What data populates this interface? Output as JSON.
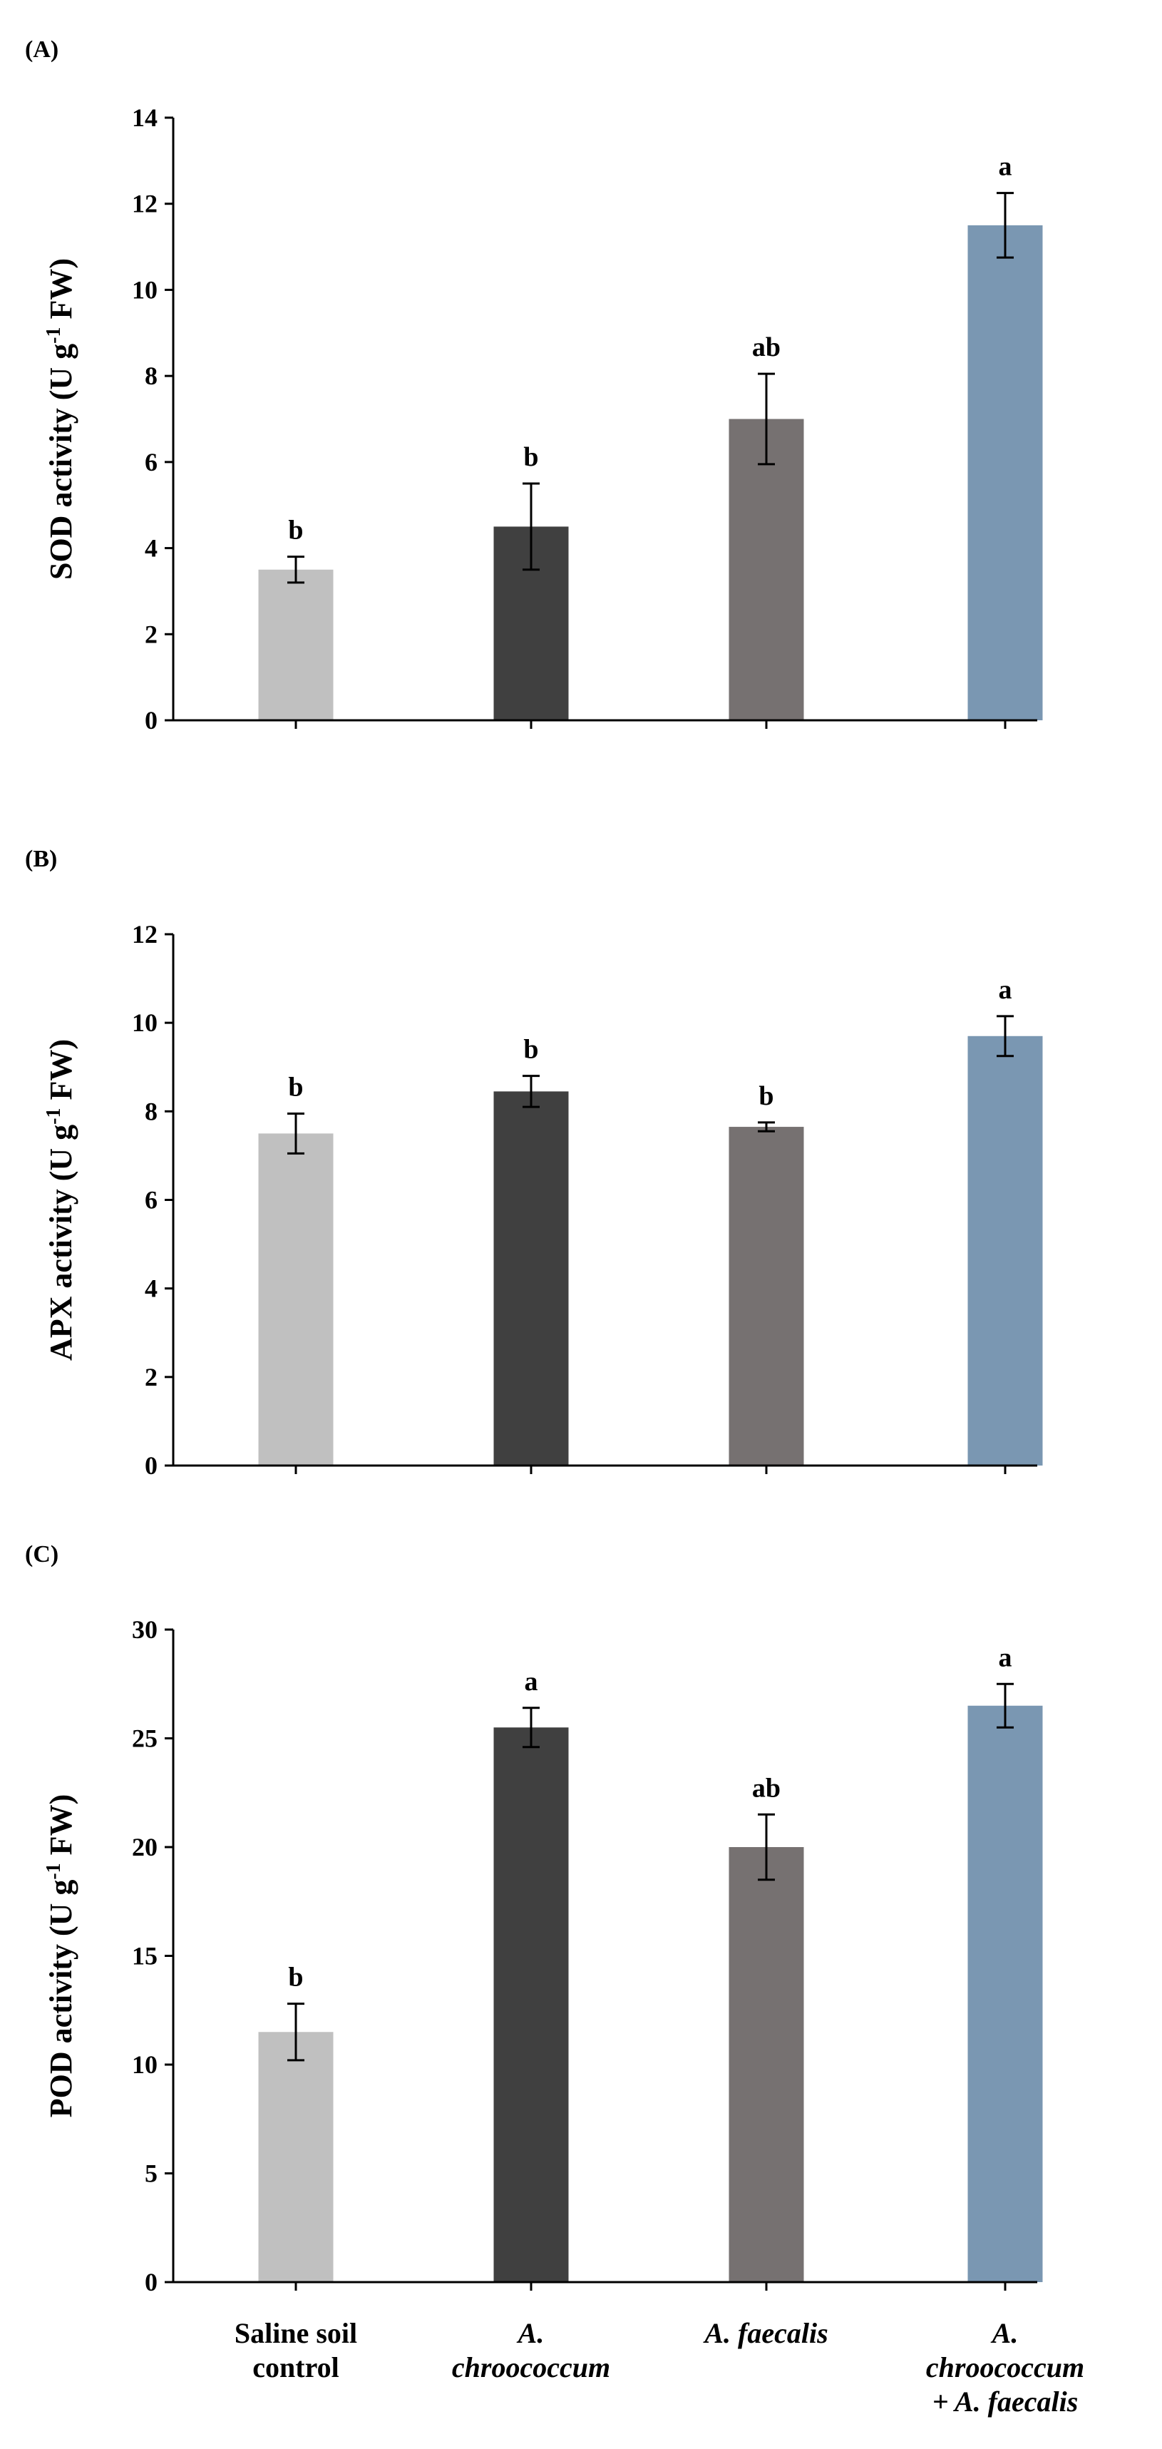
{
  "categories": [
    [
      "Saline soil",
      "control"
    ],
    [
      "A.",
      "chroococcum"
    ],
    [
      "A. faecalis"
    ],
    [
      "A.",
      "chroococcum",
      "+ A. faecalis"
    ]
  ],
  "category_italic": [
    false,
    true,
    true,
    true
  ],
  "colors": [
    "#c0c0c0",
    "#404040",
    "#767171",
    "#7a97b2"
  ],
  "chart_data": [
    {
      "type": "bar",
      "panel": "(A)",
      "ylabel": "SOD activity (U g",
      "ylabel_sup": "-1",
      "ylabel_end": " FW)",
      "ylim": [
        0,
        14
      ],
      "yticks": [
        0,
        2,
        4,
        6,
        8,
        10,
        12,
        14
      ],
      "values": [
        3.5,
        4.5,
        7.0,
        11.5
      ],
      "errors": [
        0.3,
        1.0,
        1.05,
        0.75
      ],
      "significance": [
        "b",
        "b",
        "ab",
        "a"
      ]
    },
    {
      "type": "bar",
      "panel": "(B)",
      "ylabel": "APX activity (U g",
      "ylabel_sup": "-1",
      "ylabel_end": " FW)",
      "ylim": [
        0,
        12
      ],
      "yticks": [
        0,
        2,
        4,
        6,
        8,
        10,
        12
      ],
      "values": [
        7.5,
        8.45,
        7.65,
        9.7
      ],
      "errors": [
        0.45,
        0.35,
        0.1,
        0.45
      ],
      "significance": [
        "b",
        "b",
        "b",
        "a"
      ]
    },
    {
      "type": "bar",
      "panel": "(C)",
      "ylabel": "POD activity (U g",
      "ylabel_sup": "-1",
      "ylabel_end": " FW)",
      "ylim": [
        0,
        30
      ],
      "yticks": [
        0,
        5,
        10,
        15,
        20,
        25,
        30
      ],
      "values": [
        11.5,
        25.5,
        20.0,
        26.5
      ],
      "errors": [
        1.3,
        0.9,
        1.5,
        1.0
      ],
      "significance": [
        "b",
        "a",
        "ab",
        "a"
      ]
    }
  ]
}
